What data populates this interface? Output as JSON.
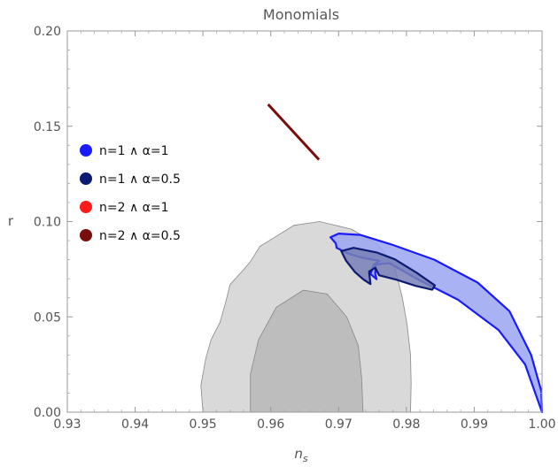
{
  "chart_data": {
    "type": "scatter",
    "title": "Monomials",
    "xlabel": "n",
    "xlabel_subscript": "s",
    "ylabel": "r",
    "xlim": [
      0.93,
      1.0
    ],
    "ylim": [
      0.0,
      0.2
    ],
    "x_ticks": [
      "0.93",
      "0.94",
      "0.95",
      "0.96",
      "0.97",
      "0.98",
      "0.99",
      "1.00"
    ],
    "y_ticks": [
      "0.00",
      "0.05",
      "0.10",
      "0.15",
      "0.20"
    ],
    "legend_position": "left",
    "series": [
      {
        "name": "n=1 ∧ α=1",
        "color": "#1a1aff"
      },
      {
        "name": "n=1 ∧ α=0.5",
        "color": "#0d1a73"
      },
      {
        "name": "n=2 ∧ α=1",
        "color": "#ff1a1a"
      },
      {
        "name": "n=2 ∧ α=0.5",
        "color": "#7a0d0d"
      }
    ],
    "confidence_regions": {
      "outer": [
        [
          0.95,
          0.0
        ],
        [
          0.9497,
          0.014
        ],
        [
          0.9504,
          0.028
        ],
        [
          0.9512,
          0.038
        ],
        [
          0.9525,
          0.047
        ],
        [
          0.9533,
          0.057
        ],
        [
          0.954,
          0.067
        ],
        [
          0.9558,
          0.074
        ],
        [
          0.957,
          0.079
        ],
        [
          0.9584,
          0.087
        ],
        [
          0.9607,
          0.092
        ],
        [
          0.9634,
          0.098
        ],
        [
          0.9672,
          0.1
        ],
        [
          0.9719,
          0.096
        ],
        [
          0.9758,
          0.088
        ],
        [
          0.9782,
          0.077
        ],
        [
          0.9794,
          0.06
        ],
        [
          0.9801,
          0.046
        ],
        [
          0.9806,
          0.03
        ],
        [
          0.9807,
          0.015
        ],
        [
          0.9806,
          0.0
        ]
      ],
      "inner": [
        [
          0.957,
          0.0
        ],
        [
          0.957,
          0.02
        ],
        [
          0.9582,
          0.038
        ],
        [
          0.9608,
          0.055
        ],
        [
          0.9648,
          0.064
        ],
        [
          0.9683,
          0.062
        ],
        [
          0.9712,
          0.05
        ],
        [
          0.9729,
          0.035
        ],
        [
          0.9734,
          0.018
        ],
        [
          0.9736,
          0.0
        ]
      ],
      "outer_color": "#d9d9d9",
      "inner_color": "#bdbdbd"
    },
    "model_regions": [
      {
        "series": "n=1 ∧ α=1",
        "fill": "#9aa6f2",
        "stroke": "#1a1aff",
        "outline": [
          [
            0.9696,
            0.0885
          ],
          [
            0.9688,
            0.0918
          ],
          [
            0.97,
            0.0937
          ],
          [
            0.9732,
            0.093
          ],
          [
            0.9778,
            0.088
          ],
          [
            0.9841,
            0.08
          ],
          [
            0.9905,
            0.068
          ],
          [
            0.9952,
            0.053
          ],
          [
            0.9984,
            0.03
          ],
          [
            0.9999,
            0.011
          ],
          [
            1.0,
            0.0
          ],
          [
            0.9996,
            0.004
          ],
          [
            0.9975,
            0.025
          ],
          [
            0.9936,
            0.043
          ],
          [
            0.9876,
            0.059
          ],
          [
            0.9815,
            0.07
          ],
          [
            0.9775,
            0.0782
          ],
          [
            0.9755,
            0.0775
          ],
          [
            0.9754,
            0.0727
          ],
          [
            0.9756,
            0.0698
          ],
          [
            0.9747,
            0.0725
          ],
          [
            0.9752,
            0.0775
          ],
          [
            0.976,
            0.0794
          ],
          [
            0.9733,
            0.0812
          ],
          [
            0.9714,
            0.0832
          ],
          [
            0.9697,
            0.0862
          ]
        ]
      },
      {
        "series": "n=1 ∧ α=0.5",
        "fill": "#7880b5",
        "stroke": "#0d1a73",
        "outline": [
          [
            0.9711,
            0.0795
          ],
          [
            0.9704,
            0.0845
          ],
          [
            0.9722,
            0.0862
          ],
          [
            0.9756,
            0.0838
          ],
          [
            0.9783,
            0.0802
          ],
          [
            0.9815,
            0.0732
          ],
          [
            0.9842,
            0.0665
          ],
          [
            0.9838,
            0.0642
          ],
          [
            0.9814,
            0.0662
          ],
          [
            0.9785,
            0.0695
          ],
          [
            0.976,
            0.0718
          ],
          [
            0.9754,
            0.0758
          ],
          [
            0.9745,
            0.0738
          ],
          [
            0.9747,
            0.0672
          ],
          [
            0.9737,
            0.0695
          ],
          [
            0.9724,
            0.0735
          ]
        ]
      }
    ],
    "model_lines": [
      {
        "series": "n=2 ∧ α=0.5",
        "color": "#7a0d0d",
        "points": [
          [
            0.9596,
            0.1615
          ],
          [
            0.9671,
            0.1325
          ]
        ]
      }
    ]
  }
}
